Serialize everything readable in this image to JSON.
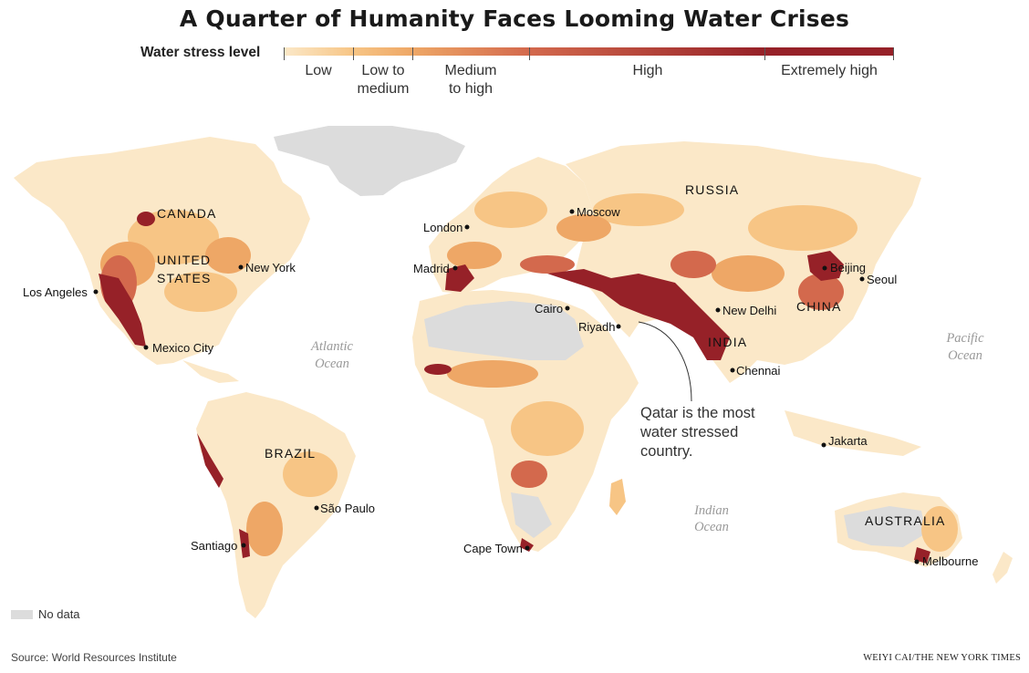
{
  "title": "A Quarter of Humanity Faces Looming Water Crises",
  "legend": {
    "title": "Water stress level",
    "levels": [
      {
        "label": "Low",
        "color": "#fbe8c8"
      },
      {
        "label": "Low to medium",
        "label_line1": "Low to",
        "label_line2": "medium",
        "color": "#f7c585"
      },
      {
        "label": "Medium to high",
        "label_line1": "Medium",
        "label_line2": "to high",
        "color": "#eea766"
      },
      {
        "label": "High",
        "color": "#d3694d"
      },
      {
        "label": "Extremely high",
        "color": "#962128"
      }
    ],
    "no_data_label": "No data",
    "no_data_color": "#dcdcdc"
  },
  "labels": {
    "countries": [
      "CANADA",
      "UNITED",
      "STATES",
      "BRAZIL",
      "RUSSIA",
      "CHINA",
      "INDIA",
      "AUSTRALIA"
    ],
    "cities": [
      "Los Angeles",
      "New York",
      "Mexico City",
      "Santiago",
      "São Paulo",
      "London",
      "Madrid",
      "Moscow",
      "Cairo",
      "Riyadh",
      "Cape Town",
      "New Delhi",
      "Chennai",
      "Beijing",
      "Seoul",
      "Jakarta",
      "Melbourne"
    ],
    "oceans": {
      "atlantic_1": "Atlantic",
      "atlantic_2": "Ocean",
      "pacific_1": "Pacific",
      "pacific_2": "Ocean",
      "indian_1": "Indian",
      "indian_2": "Ocean"
    }
  },
  "annotation": {
    "line1": "Qatar is the most",
    "line2": "water stressed",
    "line3": "country."
  },
  "source": "Source: World Resources Institute",
  "credit": "WEIYI CAI/THE NEW YORK TIMES"
}
